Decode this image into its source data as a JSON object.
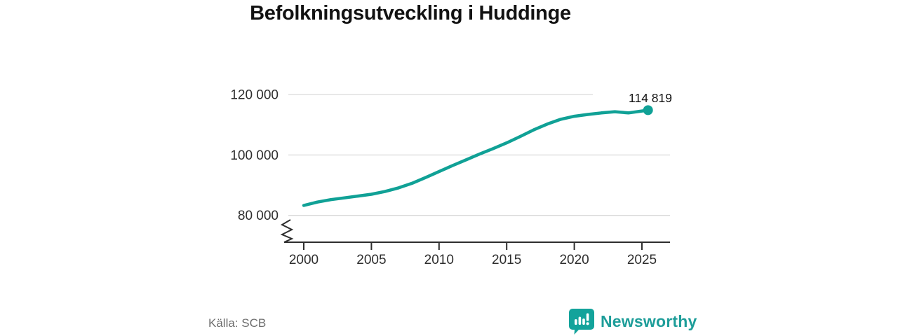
{
  "title": "Befolkningsutveckling i Huddinge",
  "chart_data": {
    "type": "line",
    "title": "Befolkningsutveckling i Huddinge",
    "x": [
      2000,
      2001,
      2002,
      2003,
      2004,
      2005,
      2006,
      2007,
      2008,
      2009,
      2010,
      2011,
      2012,
      2013,
      2014,
      2015,
      2016,
      2017,
      2018,
      2019,
      2020,
      2021,
      2022,
      2023,
      2024,
      2025.45
    ],
    "series": [
      {
        "name": "Befolkning",
        "values": [
          83300,
          84400,
          85200,
          85800,
          86400,
          87000,
          87900,
          89100,
          90600,
          92500,
          94500,
          96500,
          98400,
          100300,
          102100,
          104000,
          106100,
          108300,
          110200,
          111800,
          112800,
          113400,
          113900,
          114300,
          113900,
          114819
        ]
      }
    ],
    "x_ticks": [
      {
        "value": 2000,
        "label": "2000"
      },
      {
        "value": 2005,
        "label": "2005"
      },
      {
        "value": 2010,
        "label": "2010"
      },
      {
        "value": 2015,
        "label": "2015"
      },
      {
        "value": 2020,
        "label": "2020"
      },
      {
        "value": 2025,
        "label": "2025"
      }
    ],
    "y_ticks": [
      {
        "value": 80000,
        "label": "80 000"
      },
      {
        "value": 100000,
        "label": "100 000"
      },
      {
        "value": 120000,
        "label": "120 000"
      }
    ],
    "ylim": [
      76000,
      122000
    ],
    "xlim": [
      1998.5,
      2027
    ],
    "grid": true,
    "legend_position": "none",
    "axis_break": true,
    "end_label": "114 819",
    "end_value": 114819,
    "line_color": "#10a196"
  },
  "footer": {
    "source": "Källa: SCB",
    "brand": "Newsworthy",
    "brand_color": "#1d9d99"
  },
  "colors": {
    "accent_teal": "#10a196",
    "axis_text": "#2e2e2e",
    "grid": "#d9d9d9",
    "title_text": "#121212",
    "source_text": "#6d6d6d"
  }
}
